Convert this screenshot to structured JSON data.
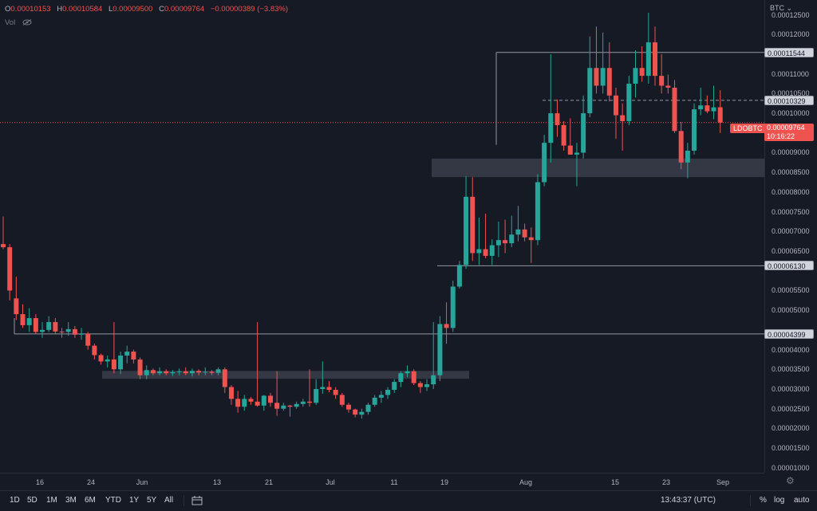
{
  "legend": {
    "o_label": "O",
    "o_value": "0.00010153",
    "h_label": "H",
    "h_value": "0.00010584",
    "l_label": "L",
    "l_value": "0.00009500",
    "c_label": "C",
    "c_value": "0.00009764",
    "change": "−0.00000389 (−3.83%)"
  },
  "volume_label": "Vol",
  "currency": "BTC",
  "symbol": "LDOBTC",
  "last_price": "0.00009764",
  "countdown": "10:16:22",
  "price_lines": [
    {
      "label": "0.00011544",
      "value": 0.00011544
    },
    {
      "label": "0.00010329",
      "value": 0.00010329
    },
    {
      "label": "0.00006130",
      "value": 6.13e-05
    },
    {
      "label": "0.00004399",
      "value": 4.399e-05
    }
  ],
  "y_ticks": [
    "0.00012500",
    "0.00012000",
    "0.00011000",
    "0.00010500",
    "0.00010000",
    "0.00009000",
    "0.00008500",
    "0.00008000",
    "0.00007500",
    "0.00007000",
    "0.00006500",
    "0.00005500",
    "0.00005000",
    "0.00004000",
    "0.00003500",
    "0.00003000",
    "0.00002500",
    "0.00002000",
    "0.00001500",
    "0.00001000"
  ],
  "x_ticks": [
    "16",
    "24",
    "Jun",
    "13",
    "21",
    "Jul",
    "11",
    "19",
    "Aug",
    "15",
    "23",
    "Sep"
  ],
  "ranges": [
    "1D",
    "5D",
    "1M",
    "3M",
    "6M",
    "YTD",
    "1Y",
    "5Y",
    "All"
  ],
  "clock": "13:43:37 (UTC)",
  "options": [
    "%",
    "log",
    "auto"
  ],
  "colors": {
    "up": "#26a69a",
    "down": "#ef5350",
    "bg": "#161a25",
    "zone": "#3a3e4a"
  },
  "chart_data": {
    "type": "candlestick",
    "ylim": [
      8.75e-06,
      0.00012875
    ],
    "candles": [
      [
        6.68e-05,
        7.38e-05,
        6.55e-05,
        6.6e-05
      ],
      [
        6.6e-05,
        6.68e-05,
        5.25e-05,
        5.5e-05
      ],
      [
        5.3e-05,
        5.85e-05,
        4.75e-05,
        4.9e-05
      ],
      [
        4.9e-05,
        5.15e-05,
        4.55e-05,
        4.62e-05
      ],
      [
        4.62e-05,
        5.05e-05,
        4.45e-05,
        4.8e-05
      ],
      [
        4.8e-05,
        4.9e-05,
        4.4e-05,
        4.45e-05
      ],
      [
        4.45e-05,
        4.7e-05,
        4.3e-05,
        4.5e-05
      ],
      [
        4.5e-05,
        4.85e-05,
        4.45e-05,
        4.7e-05
      ],
      [
        4.7e-05,
        4.8e-05,
        4.4e-05,
        4.46e-05
      ],
      [
        4.46e-05,
        4.55e-05,
        4.3e-05,
        4.45e-05
      ],
      [
        4.45e-05,
        4.7e-05,
        4.35e-05,
        4.52e-05
      ],
      [
        4.52e-05,
        4.6e-05,
        4.3e-05,
        4.38e-05
      ],
      [
        4.38e-05,
        4.55e-05,
        4.25e-05,
        4.4e-05
      ],
      [
        4.4e-05,
        4.45e-05,
        4e-05,
        4.1e-05
      ],
      [
        4.1e-05,
        4.15e-05,
        3.75e-05,
        3.86e-05
      ],
      [
        3.86e-05,
        3.9e-05,
        3.62e-05,
        3.7e-05
      ],
      [
        3.7e-05,
        3.85e-05,
        3.55e-05,
        3.75e-05
      ],
      [
        3.75e-05,
        4.7e-05,
        3.4e-05,
        3.5e-05
      ],
      [
        3.5e-05,
        3.95e-05,
        3.38e-05,
        3.85e-05
      ],
      [
        3.85e-05,
        4.1e-05,
        3.65e-05,
        3.95e-05
      ],
      [
        3.95e-05,
        4e-05,
        3.65e-05,
        3.75e-05
      ],
      [
        3.75e-05,
        3.8e-05,
        3.25e-05,
        3.35e-05
      ],
      [
        3.35e-05,
        3.6e-05,
        3.25e-05,
        3.48e-05
      ],
      [
        3.48e-05,
        3.52e-05,
        3.35e-05,
        3.4e-05
      ],
      [
        3.4e-05,
        3.55e-05,
        3.35e-05,
        3.45e-05
      ],
      [
        3.45e-05,
        3.5e-05,
        3.35e-05,
        3.4e-05
      ],
      [
        3.4e-05,
        3.48e-05,
        3.33e-05,
        3.43e-05
      ],
      [
        3.43e-05,
        3.52e-05,
        3.35e-05,
        3.45e-05
      ],
      [
        3.45e-05,
        3.55e-05,
        3.35e-05,
        3.4e-05
      ],
      [
        3.4e-05,
        3.52e-05,
        3.32e-05,
        3.46e-05
      ],
      [
        3.46e-05,
        3.5e-05,
        3.35e-05,
        3.42e-05
      ],
      [
        3.42e-05,
        3.55e-05,
        3.35e-05,
        3.44e-05
      ],
      [
        3.44e-05,
        3.48e-05,
        3.35e-05,
        3.41e-05
      ],
      [
        3.41e-05,
        3.55e-05,
        3.35e-05,
        3.5e-05
      ],
      [
        3.5e-05,
        3.55e-05,
        2.9e-05,
        3.05e-05
      ],
      [
        3.05e-05,
        3.1e-05,
        2.6e-05,
        2.75e-05
      ],
      [
        2.75e-05,
        2.95e-05,
        2.4e-05,
        2.55e-05
      ],
      [
        2.55e-05,
        2.85e-05,
        2.45e-05,
        2.75e-05
      ],
      [
        2.75e-05,
        2.8e-05,
        2.6e-05,
        2.68e-05
      ],
      [
        2.68e-05,
        4.7e-05,
        2.55e-05,
        2.58e-05
      ],
      [
        2.58e-05,
        2.85e-05,
        2.45e-05,
        2.83e-05
      ],
      [
        2.83e-05,
        2.9e-05,
        2.55e-05,
        2.65e-05
      ],
      [
        2.65e-05,
        3.45e-05,
        2.32e-05,
        2.5e-05
      ],
      [
        2.5e-05,
        2.65e-05,
        2.45e-05,
        2.58e-05
      ],
      [
        2.58e-05,
        2.6e-05,
        2.3e-05,
        2.55e-05
      ],
      [
        2.55e-05,
        2.68e-05,
        2.5e-05,
        2.62e-05
      ],
      [
        2.62e-05,
        2.75e-05,
        2.55e-05,
        2.68e-05
      ],
      [
        2.68e-05,
        3.5e-05,
        2.55e-05,
        2.65e-05
      ],
      [
        2.65e-05,
        3.25e-05,
        2.6e-05,
        3e-05
      ],
      [
        3e-05,
        3.7e-05,
        2.88e-05,
        3.05e-05
      ],
      [
        3.05e-05,
        3.2e-05,
        2.92e-05,
        2.98e-05
      ],
      [
        2.98e-05,
        3.05e-05,
        2.75e-05,
        2.85e-05
      ],
      [
        2.85e-05,
        2.9e-05,
        2.55e-05,
        2.6e-05
      ],
      [
        2.6e-05,
        2.65e-05,
        2.4e-05,
        2.48e-05
      ],
      [
        2.48e-05,
        2.5e-05,
        2.28e-05,
        2.35e-05
      ],
      [
        2.35e-05,
        2.5e-05,
        2.25e-05,
        2.42e-05
      ],
      [
        2.42e-05,
        2.65e-05,
        2.35e-05,
        2.6e-05
      ],
      [
        2.6e-05,
        2.85e-05,
        2.55e-05,
        2.78e-05
      ],
      [
        2.78e-05,
        2.95e-05,
        2.65e-05,
        2.85e-05
      ],
      [
        2.85e-05,
        3.05e-05,
        2.75e-05,
        2.98e-05
      ],
      [
        2.98e-05,
        3.25e-05,
        2.9e-05,
        3.18e-05
      ],
      [
        3.18e-05,
        3.45e-05,
        3.05e-05,
        3.4e-05
      ],
      [
        3.4e-05,
        3.6e-05,
        3.3e-05,
        3.45e-05
      ],
      [
        3.45e-05,
        3.5e-05,
        3.1e-05,
        3.15e-05
      ],
      [
        3.15e-05,
        3.2e-05,
        2.9e-05,
        3.05e-05
      ],
      [
        3.05e-05,
        3.25e-05,
        2.95e-05,
        3.12e-05
      ],
      [
        3.12e-05,
        4.7e-05,
        3e-05,
        3.35e-05
      ],
      [
        3.35e-05,
        4.85e-05,
        3.2e-05,
        4.65e-05
      ],
      [
        4.65e-05,
        5.2e-05,
        4.15e-05,
        4.55e-05
      ],
      [
        4.55e-05,
        5.75e-05,
        4.45e-05,
        5.6e-05
      ],
      [
        5.6e-05,
        6.25e-05,
        5.55e-05,
        6.15e-05
      ],
      [
        6.15e-05,
        8.4e-05,
        6.05e-05,
        7.88e-05
      ],
      [
        7.88e-05,
        8.38e-05,
        6.25e-05,
        6.45e-05
      ],
      [
        6.45e-05,
        7.35e-05,
        6.15e-05,
        6.55e-05
      ],
      [
        6.55e-05,
        7.45e-05,
        6.32e-05,
        6.38e-05
      ],
      [
        6.38e-05,
        6.8e-05,
        6.15e-05,
        6.65e-05
      ],
      [
        6.65e-05,
        7.25e-05,
        6.35e-05,
        6.78e-05
      ],
      [
        6.78e-05,
        7.3e-05,
        6.45e-05,
        6.7e-05
      ],
      [
        6.7e-05,
        7.4e-05,
        6.6e-05,
        6.92e-05
      ],
      [
        6.92e-05,
        7.65e-05,
        6.75e-05,
        7.05e-05
      ],
      [
        7.05e-05,
        7.2e-05,
        6.75e-05,
        6.85e-05
      ],
      [
        6.85e-05,
        7.1e-05,
        6.2e-05,
        6.78e-05
      ],
      [
        6.78e-05,
        8.45e-05,
        6.65e-05,
        8.25e-05
      ],
      [
        8.25e-05,
        9.45e-05,
        8.15e-05,
        9.25e-05
      ],
      [
        9.25e-05,
        0.000115,
        8.75e-05,
        0.0001
      ],
      [
        0.0001,
        0.0001035,
        9.4e-05,
        9.7e-05
      ],
      [
        9.7e-05,
        9.8e-05,
        9.05e-05,
        9.18e-05
      ],
      [
        9.18e-05,
        9.875e-05,
        8.95e-05,
        8.95e-05
      ],
      [
        8.95e-05,
        9.25e-05,
        8.15e-05,
        9e-05
      ],
      [
        9e-05,
        0.0001045,
        8.85e-05,
        0.0001
      ],
      [
        0.0001,
        0.0001195,
        9.9e-05,
        0.0001115
      ],
      [
        0.0001115,
        0.000122,
        0.000105,
        0.000107
      ],
      [
        0.000107,
        0.0001205,
        0.000105,
        0.0001115
      ],
      [
        0.0001115,
        0.000118,
        0.000103,
        0.0001045
      ],
      [
        0.0001045,
        0.0001065,
        9.35e-05,
        9.95e-05
      ],
      [
        9.95e-05,
        0.0001025,
        9.05e-05,
        9.8e-05
      ],
      [
        9.8e-05,
        0.0001095,
        9.7e-05,
        0.0001075
      ],
      [
        0.0001075,
        0.000116,
        0.000104,
        0.0001115
      ],
      [
        0.0001115,
        0.000117,
        0.000108,
        0.0001095
      ],
      [
        0.0001095,
        0.0001255,
        0.0001075,
        0.000118
      ],
      [
        0.000118,
        0.000122,
        0.000107,
        0.0001095
      ],
      [
        0.0001095,
        0.000115,
        0.000105,
        0.000107
      ],
      [
        0.000107,
        0.0001098,
        0.000105,
        0.0001065
      ],
      [
        0.0001065,
        0.00010845,
        9.5e-05,
        9.55e-05
      ],
      [
        9.55e-05,
        9.78e-05,
        8.58e-05,
        8.75e-05
      ],
      [
        8.75e-05,
        9.25e-05,
        8.35e-05,
        9.05e-05
      ],
      [
        9.05e-05,
        0.0001025,
        8.95e-05,
        0.000101
      ],
      [
        0.000101,
        0.0001065,
        9.95e-05,
        0.000102
      ],
      [
        0.000102,
        0.0001045,
        0.0001,
        0.0001005
      ],
      [
        0.0001005,
        0.000107,
        9.85e-05,
        0.0001015
      ],
      [
        0.00010153,
        0.00010584,
        9.5e-05,
        9.764e-05
      ]
    ],
    "zones": [
      {
        "x0": 3.26e-05,
        "x1": 3.46e-05
      },
      {
        "x0": 8.38e-05,
        "x1": 8.85e-05
      }
    ]
  }
}
